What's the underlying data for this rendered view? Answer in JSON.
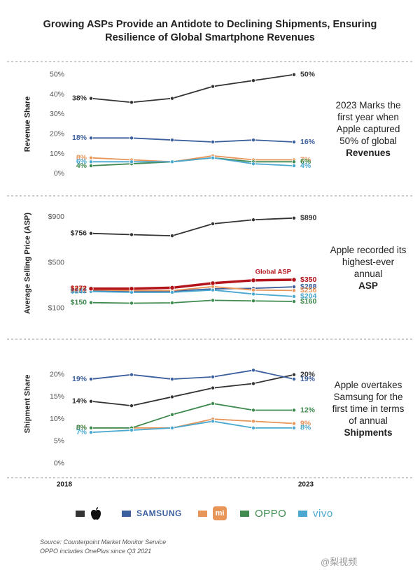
{
  "title": "Growing ASPs Provide an Antidote to Declining Shipments, Ensuring Resilience of Global Smartphone Revenues",
  "chart_data": [
    {
      "type": "line",
      "y_label": "Revenue Share",
      "categories": [
        "2018",
        null,
        null,
        null,
        null,
        "2023"
      ],
      "ylim": [
        -2,
        52
      ],
      "yticks": [
        {
          "value": 0,
          "label": "0%"
        },
        {
          "value": 10,
          "label": "10%"
        },
        {
          "value": 20,
          "label": "20%"
        },
        {
          "value": 30,
          "label": "30%"
        },
        {
          "value": 40,
          "label": "40%"
        },
        {
          "value": 50,
          "label": "50%"
        }
      ],
      "grid": false,
      "note": "2023 Marks the first year when Apple captured 50% of global",
      "note_emphasis": "Revenues",
      "series": [
        {
          "color": "#333333",
          "values": [
            38,
            36,
            38,
            44,
            47,
            50
          ],
          "value_labels": [
            "38%",
            null,
            null,
            null,
            null,
            "50%"
          ]
        },
        {
          "name": "SAMSUNG",
          "color": "#3c5f9e",
          "values": [
            18,
            18,
            17,
            16,
            17,
            16
          ],
          "value_labels": [
            "18%",
            null,
            null,
            null,
            null,
            "16%"
          ]
        },
        {
          "name": "mi",
          "color": "#e8955a",
          "values": [
            8,
            7,
            6,
            9,
            7,
            7
          ],
          "value_labels": [
            "8%",
            null,
            null,
            null,
            null,
            "7%"
          ]
        },
        {
          "name": "OPPO",
          "color": "#3f8a4f",
          "values": [
            4,
            5,
            6,
            8,
            6,
            6
          ],
          "value_labels": [
            "4%",
            null,
            null,
            null,
            null,
            "6%"
          ]
        },
        {
          "name": "vivo",
          "color": "#4aa8d0",
          "values": [
            6,
            6,
            6,
            8,
            5,
            4
          ],
          "value_labels": [
            "6%",
            null,
            null,
            null,
            null,
            "4%"
          ]
        }
      ]
    },
    {
      "type": "line",
      "y_label": "Average Selling Price (ASP)",
      "categories": [
        "2018",
        null,
        null,
        null,
        null,
        "2023"
      ],
      "ylim": [
        50,
        950
      ],
      "yticks": [
        {
          "value": 100,
          "label": "$100"
        },
        {
          "value": 500,
          "label": "$500"
        },
        {
          "value": 900,
          "label": "$900"
        }
      ],
      "grid": false,
      "note": "Apple recorded its highest-ever annual",
      "note_emphasis": "ASP",
      "series": [
        {
          "color": "#333333",
          "values": [
            756,
            745,
            735,
            840,
            875,
            890
          ],
          "value_labels": [
            "$756",
            null,
            null,
            null,
            null,
            "$890"
          ]
        },
        {
          "color": "#3c5f9e",
          "values": [
            252,
            245,
            250,
            270,
            275,
            288
          ],
          "value_labels": [
            "$252",
            null,
            null,
            null,
            null,
            "$288"
          ]
        },
        {
          "color": "#e8955a",
          "values": [
            261,
            255,
            255,
            290,
            260,
            256
          ],
          "value_labels": [
            "$261",
            null,
            null,
            null,
            null,
            "$256"
          ]
        },
        {
          "color": "#3f8a4f",
          "values": [
            150,
            145,
            148,
            170,
            165,
            160
          ],
          "value_labels": [
            "$150",
            null,
            null,
            null,
            null,
            "$160"
          ]
        },
        {
          "color": "#4aa8d0",
          "values": [
            247,
            240,
            240,
            260,
            225,
            204
          ],
          "value_labels": [
            "$247",
            null,
            null,
            null,
            null,
            "$204"
          ]
        },
        {
          "name": "Global ASP",
          "inline_label": true,
          "color": "#b3141a",
          "values": [
            272,
            272,
            280,
            320,
            345,
            350
          ],
          "value_labels": [
            "$272",
            null,
            null,
            null,
            null,
            "$350"
          ]
        }
      ]
    },
    {
      "type": "line",
      "y_label": "Shipment Share",
      "categories": [
        "2018",
        null,
        null,
        null,
        null,
        "2023"
      ],
      "ylim": [
        -1,
        22
      ],
      "yticks": [
        {
          "value": 0,
          "label": "0%"
        },
        {
          "value": 5,
          "label": "5%"
        },
        {
          "value": 10,
          "label": "10%"
        },
        {
          "value": 15,
          "label": "15%"
        },
        {
          "value": 20,
          "label": "20%"
        }
      ],
      "grid": false,
      "show_x_labels": true,
      "note": "Apple overtakes Samsung for the first time in terms of annual",
      "note_emphasis": "Shipments",
      "series": [
        {
          "color": "#333333",
          "values": [
            14,
            13,
            15,
            17,
            18,
            20
          ],
          "value_labels": [
            "14%",
            null,
            null,
            null,
            null,
            "20%"
          ]
        },
        {
          "color": "#3c5f9e",
          "values": [
            19,
            20,
            19,
            19.5,
            21,
            19
          ],
          "value_labels": [
            "19%",
            null,
            null,
            null,
            null,
            "19%"
          ]
        },
        {
          "color": "#e8955a",
          "values": [
            8,
            8,
            8,
            10,
            9.5,
            9
          ],
          "value_labels": [
            "8%",
            null,
            null,
            null,
            null,
            "9%"
          ]
        },
        {
          "color": "#3f8a4f",
          "values": [
            8,
            8,
            11,
            13.5,
            12,
            12
          ],
          "value_labels": [
            "8%",
            null,
            null,
            null,
            null,
            "12%"
          ]
        },
        {
          "color": "#4aa8d0",
          "values": [
            7,
            7.5,
            8,
            9.5,
            8,
            8
          ],
          "value_labels": [
            "7%",
            null,
            null,
            null,
            null,
            "8%"
          ]
        }
      ]
    }
  ],
  "footer": {
    "source": "Source: Counterpoint Market Monitor Service",
    "footnote": "OPPO includes OnePlus since Q3 2021",
    "watermark": "@梨视频"
  }
}
